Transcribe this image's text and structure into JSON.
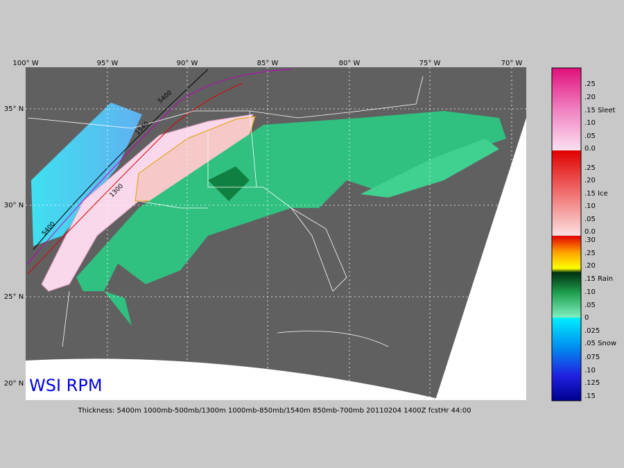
{
  "map": {
    "title": "WSI RPM",
    "caption": "Thickness: 5400m 1000mb-500mb/1300m 1000mb-850mb/1540m 850mb-700mb 20110204 1400Z fcstHr 44:00",
    "longitude_labels": [
      "100° W",
      "95° W",
      "90° W",
      "85° W",
      "80° W",
      "75° W",
      "70° W"
    ],
    "latitude_labels": [
      "35° N",
      "30° N",
      "25° N",
      "20° N"
    ],
    "contour_labels": [
      "5400",
      "5400",
      "1300",
      "1540"
    ],
    "legend": {
      "sleet": [
        ".25",
        ".20",
        ".15 Sleet",
        ".10",
        ".05",
        "0.0"
      ],
      "ice": [
        ".25",
        ".20",
        ".15 Ice",
        ".10",
        ".05",
        "0.0"
      ],
      "rain": [
        ".30",
        ".25",
        ".20",
        ".15 Rain",
        ".10",
        ".05",
        "0"
      ],
      "snow": [
        ".025",
        ".05 Snow",
        ".075",
        ".10",
        ".125",
        ".15"
      ]
    }
  }
}
